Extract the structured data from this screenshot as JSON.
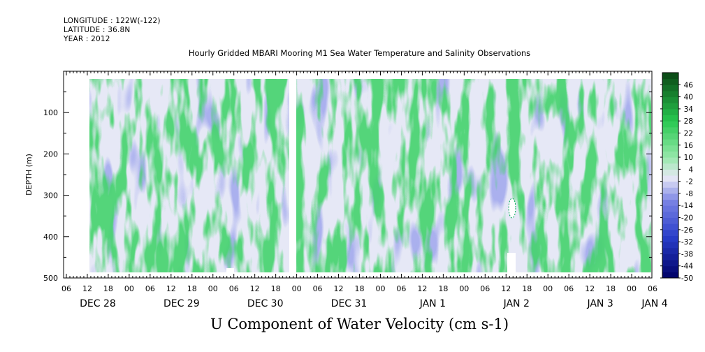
{
  "header": {
    "longitude": "LONGITUDE : 122W(-122)",
    "latitude": "LATITUDE : 36.8N",
    "year": "YEAR : 2012"
  },
  "title": "Hourly Gridded MBARI Mooring M1 Sea Water Temperature and Salinity Observations",
  "bottom_title": "U Component of Water Velocity (cm s-1)",
  "chart_data": {
    "type": "heatmap",
    "title": "Hourly Gridded MBARI Mooring M1 Sea Water Temperature and Salinity Observations",
    "xlabel": "",
    "ylabel": "DEPTH (m)",
    "ylim": [
      500,
      0
    ],
    "y_ticks": [
      "100",
      "200",
      "300",
      "400",
      "500"
    ],
    "x_hour_ticks": [
      "06",
      "12",
      "18",
      "00",
      "06",
      "12",
      "18",
      "00",
      "06",
      "12",
      "18",
      "00",
      "06",
      "12",
      "18",
      "00",
      "06",
      "12",
      "18",
      "00",
      "06",
      "12",
      "18",
      "00",
      "06",
      "12",
      "18",
      "00",
      "06"
    ],
    "x_day_labels": [
      "DEC 28",
      "DEC 29",
      "DEC 30",
      "DEC 31",
      "JAN  1",
      "JAN  2",
      "JAN  3",
      "JAN  4"
    ],
    "colorbar_levels": [
      "46",
      "40",
      "34",
      "28",
      "22",
      "16",
      "10",
      "4",
      "-2",
      "-8",
      "-14",
      "-20",
      "-26",
      "-32",
      "-38",
      "-44",
      "-50"
    ],
    "colorbar_range": [
      -50,
      52
    ],
    "colors": {
      "strong_positive": "#0c4a12",
      "positive": "#3fd66a",
      "weak_positive": "#b9f0c4",
      "near_zero": "#e6e8f6",
      "weak_negative": "#b2b6ef",
      "negative": "#6e78e0",
      "strong_negative": "#000066"
    }
  }
}
